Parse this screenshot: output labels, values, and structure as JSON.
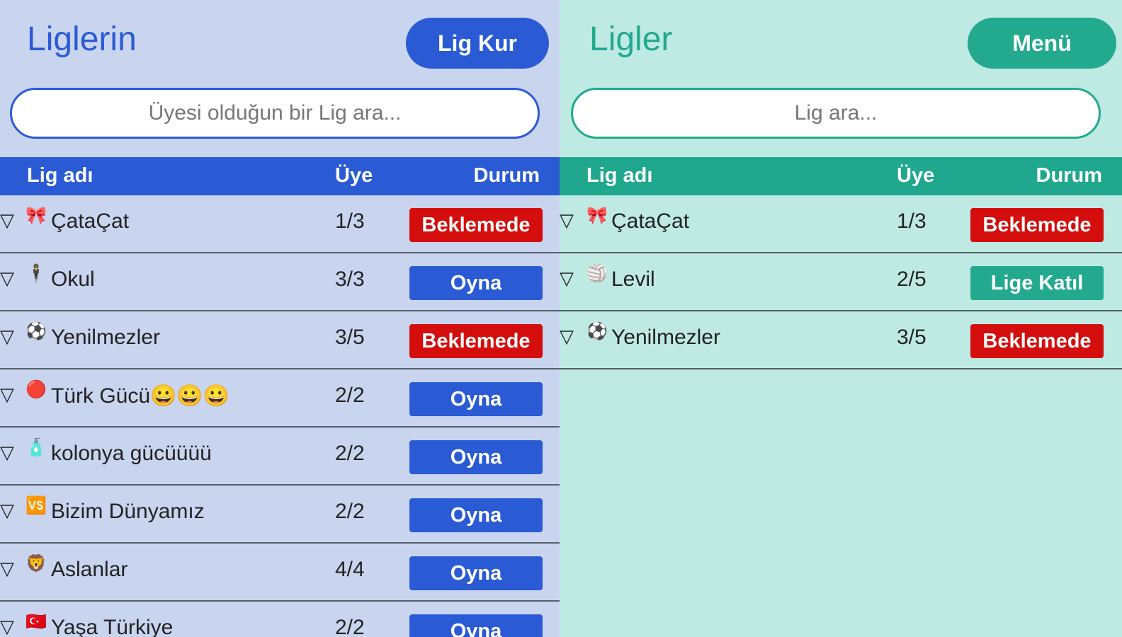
{
  "left": {
    "title": "Liglerin",
    "action": "Lig Kur",
    "search_placeholder": "Üyesi olduğun bir Lig ara...",
    "columns": {
      "name": "Lig adı",
      "members": "Üye",
      "status": "Durum"
    },
    "rows": [
      {
        "icon": "🎀",
        "name": "ÇataÇat",
        "members": "1/3",
        "status": "Beklemede",
        "status_color": "#d40d0d"
      },
      {
        "icon": "🕴",
        "name": "Okul",
        "members": "3/3",
        "status": "Oyna",
        "status_color": "#2a5bd4"
      },
      {
        "icon": "⚽",
        "name": "Yenilmezler",
        "members": "3/5",
        "status": "Beklemede",
        "status_color": "#d40d0d"
      },
      {
        "icon": "🔴",
        "name": "Türk Gücü😀😀😀",
        "members": "2/2",
        "status": "Oyna",
        "status_color": "#2a5bd4"
      },
      {
        "icon": "🧴",
        "name": "kolonya gücüüüü",
        "members": "2/2",
        "status": "Oyna",
        "status_color": "#2a5bd4"
      },
      {
        "icon": "🆚",
        "name": "Bizim Dünyamız",
        "members": "2/2",
        "status": "Oyna",
        "status_color": "#2a5bd4"
      },
      {
        "icon": "🦁",
        "name": "Aslanlar",
        "members": "4/4",
        "status": "Oyna",
        "status_color": "#2a5bd4"
      },
      {
        "icon": "🇹🇷",
        "name": "Yaşa Türkiye",
        "members": "2/2",
        "status": "Oyna",
        "status_color": "#2a5bd4"
      }
    ]
  },
  "right": {
    "title": "Ligler",
    "action": "Menü",
    "search_placeholder": "Lig ara...",
    "columns": {
      "name": "Lig adı",
      "members": "Üye",
      "status": "Durum"
    },
    "rows": [
      {
        "icon": "🎀",
        "name": "ÇataÇat",
        "members": "1/3",
        "status": "Beklemede",
        "status_color": "#d40d0d"
      },
      {
        "icon": "🏐",
        "name": "Levil",
        "members": "2/5",
        "status": "Lige Katıl",
        "status_color": "#22a98e"
      },
      {
        "icon": "⚽",
        "name": "Yenilmezler",
        "members": "3/5",
        "status": "Beklemede",
        "status_color": "#d40d0d"
      }
    ]
  },
  "expand_glyph": "▽",
  "colors": {
    "left_accent": "#2a5bd4",
    "right_accent": "#22a98e",
    "pending": "#d40d0d"
  }
}
